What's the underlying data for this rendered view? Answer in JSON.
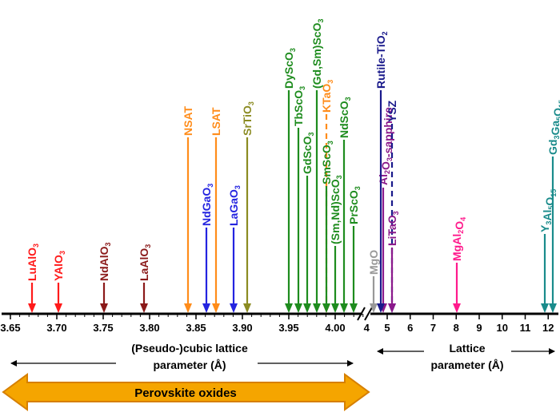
{
  "axis": {
    "left_ticks": [
      "3.65",
      "3.70",
      "3.75",
      "3.80",
      "3.85",
      "3.90",
      "3.95",
      "4.00"
    ],
    "right_ticks": [
      "5",
      "6",
      "7",
      "8",
      "9",
      "10",
      "11",
      "12"
    ],
    "right_start_tick": "4",
    "left_label_line1": "(Pseudo-)cubic lattice",
    "left_label_line2": "parameter (Å)",
    "right_label_line1": "Lattice",
    "right_label_line2": "parameter (Å)"
  },
  "banner": {
    "text": "Perovskite oxides",
    "fill": "#F5A500",
    "stroke": "#D67F00",
    "text_color": "#000000"
  },
  "perovskites": [
    {
      "name": "LuAlO",
      "sub": "3",
      "value": 3.67,
      "color": "#FF1A1A",
      "dashed": false
    },
    {
      "name": "YAlO",
      "sub": "3",
      "value": 3.7,
      "color": "#FF1A1A",
      "dashed": false
    },
    {
      "name": "NdAlO",
      "sub": "3",
      "value": 3.75,
      "color": "#8B1A1A",
      "dashed": false
    },
    {
      "name": "LaAlO",
      "sub": "3",
      "value": 3.79,
      "color": "#8B1A1A",
      "dashed": false
    },
    {
      "name": "NSAT",
      "sub": "",
      "value": 3.84,
      "color": "#FF8C1A",
      "dashed": false
    },
    {
      "name": "NdGaO",
      "sub": "3",
      "value": 3.86,
      "color": "#2424E0",
      "dashed": false
    },
    {
      "name": "LSAT",
      "sub": "",
      "value": 3.87,
      "color": "#FF8C1A",
      "dashed": false
    },
    {
      "name": "LaGaO",
      "sub": "3",
      "value": 3.89,
      "color": "#2424E0",
      "dashed": false
    },
    {
      "name": "SrTiO",
      "sub": "3",
      "value": 3.905,
      "color": "#8B8B22",
      "dashed": false
    },
    {
      "name": "DyScO",
      "sub": "3",
      "value": 3.95,
      "color": "#1E8C1E",
      "dashed": false
    },
    {
      "name": "TbScO",
      "sub": "3",
      "value": 3.96,
      "color": "#1E8C1E",
      "dashed": false
    },
    {
      "name": "GdScO",
      "sub": "3",
      "value": 3.97,
      "color": "#1E8C1E",
      "dashed": false
    },
    {
      "name": "(Gd,Sm)ScO",
      "sub": "3",
      "value": 3.98,
      "color": "#1E8C1E",
      "dashed": false
    },
    {
      "name": "KTaO",
      "sub": "3",
      "value": 3.99,
      "color": "#FF8C1A",
      "dashed": true
    },
    {
      "name": "SmScO",
      "sub": "3",
      "value": 3.99,
      "color": "#1E8C1E",
      "dashed": false
    },
    {
      "name": "(Sm,Nd)ScO",
      "sub": "3",
      "value": 4.0,
      "color": "#1E8C1E",
      "dashed": false
    },
    {
      "name": "NdScO",
      "sub": "3",
      "value": 4.01,
      "color": "#1E8C1E",
      "dashed": false
    },
    {
      "name": "PrScO",
      "sub": "3",
      "value": 4.02,
      "color": "#1E8C1E",
      "dashed": false
    }
  ],
  "others": [
    {
      "name": "MgO",
      "value": 4.21,
      "color": "#999999",
      "dashed": false
    },
    {
      "name": "Al2O3-sapphire",
      "value": 4.76,
      "color": "#8B1A8B",
      "dashed": false
    },
    {
      "name": "Rutile-TiO2",
      "value": 4.59,
      "color": "#1A1A8B",
      "dashed": false
    },
    {
      "name": "YSZ",
      "value": 5.14,
      "color": "#1A1A8B",
      "dashed": true
    },
    {
      "name": "LiTaO3",
      "value": 5.15,
      "color": "#8B1A8B",
      "dashed": false
    },
    {
      "name": "MgAl2O4",
      "value": 8.08,
      "color": "#FF1A8C",
      "dashed": false
    },
    {
      "name": "Y3Al5O15",
      "value": 12.0,
      "color": "#1A8B8B",
      "dashed": false
    },
    {
      "name": "Gd3Ga5O15",
      "value": 12.38,
      "color": "#1A8B8B",
      "dashed": false
    }
  ],
  "label_parts": {
    "MgO": [
      [
        "MgO",
        ""
      ]
    ],
    "Al2O3-sapphire": [
      [
        "Al",
        ""
      ],
      [
        "2",
        "sub"
      ],
      [
        "O",
        ""
      ],
      [
        "3",
        "sub"
      ],
      [
        "-sapphire",
        ""
      ]
    ],
    "Rutile-TiO2": [
      [
        "Rutile-TiO",
        ""
      ],
      [
        "2",
        "sub"
      ]
    ],
    "YSZ": [
      [
        "YSZ",
        ""
      ]
    ],
    "LiTaO3": [
      [
        "LiTaO",
        ""
      ],
      [
        "3",
        "sub"
      ]
    ],
    "MgAl2O4": [
      [
        "MgAl",
        ""
      ],
      [
        "2",
        "sub"
      ],
      [
        "O",
        ""
      ],
      [
        "4",
        "sub"
      ]
    ],
    "Y3Al5O15": [
      [
        "Y",
        ""
      ],
      [
        "3",
        "sub"
      ],
      [
        "Al",
        ""
      ],
      [
        "5",
        "sub"
      ],
      [
        "O",
        ""
      ],
      [
        "15",
        "sub"
      ]
    ],
    "Gd3Ga5O15": [
      [
        "Gd",
        ""
      ],
      [
        "3",
        "sub"
      ],
      [
        "Ga",
        ""
      ],
      [
        "5",
        "sub"
      ],
      [
        "O",
        ""
      ],
      [
        "15",
        "sub"
      ]
    ]
  }
}
